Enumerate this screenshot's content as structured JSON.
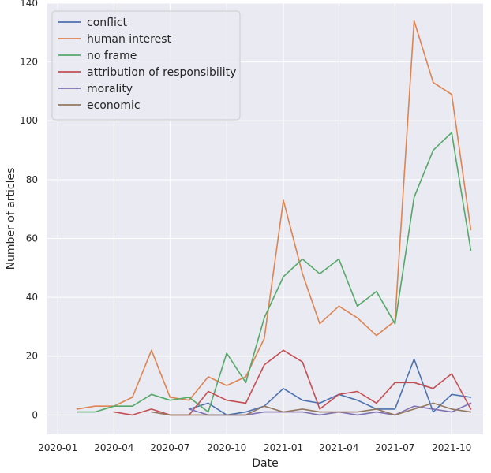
{
  "chart_data": {
    "type": "line",
    "title": "",
    "xlabel": "Date",
    "ylabel": "Number of articles",
    "x_ticks": [
      "2020-01",
      "2020-04",
      "2020-07",
      "2020-10",
      "2021-01",
      "2021-04",
      "2021-07",
      "2021-10"
    ],
    "y_ticks": [
      0,
      20,
      40,
      60,
      80,
      100,
      120,
      140
    ],
    "xlim": [
      "2019-12-15",
      "2021-11-21"
    ],
    "ylim": [
      -6.6,
      140
    ],
    "grid": true,
    "legend_position": "top-left",
    "series": [
      {
        "name": "conflict",
        "color": "#4c72b0",
        "points": [
          [
            "2020-08",
            2
          ],
          [
            "2020-09",
            4
          ],
          [
            "2020-10",
            0
          ],
          [
            "2020-11",
            1
          ],
          [
            "2020-12",
            3
          ],
          [
            "2021-01",
            9
          ],
          [
            "2021-02",
            5
          ],
          [
            "2021-03",
            4
          ],
          [
            "2021-04",
            7
          ],
          [
            "2021-05",
            5
          ],
          [
            "2021-06",
            2
          ],
          [
            "2021-07",
            2
          ],
          [
            "2021-08",
            19
          ],
          [
            "2021-09",
            1
          ],
          [
            "2021-10",
            7
          ],
          [
            "2021-11",
            6
          ]
        ]
      },
      {
        "name": "human interest",
        "color": "#dd8452",
        "points": [
          [
            "2020-02",
            2
          ],
          [
            "2020-03",
            3
          ],
          [
            "2020-04",
            3
          ],
          [
            "2020-05",
            6
          ],
          [
            "2020-06",
            22
          ],
          [
            "2020-07",
            6
          ],
          [
            "2020-08",
            5
          ],
          [
            "2020-09",
            13
          ],
          [
            "2020-10",
            10
          ],
          [
            "2020-11",
            13
          ],
          [
            "2020-12",
            26
          ],
          [
            "2021-01",
            73
          ],
          [
            "2021-02",
            48
          ],
          [
            "2021-03",
            31
          ],
          [
            "2021-04",
            37
          ],
          [
            "2021-05",
            33
          ],
          [
            "2021-06",
            27
          ],
          [
            "2021-07",
            32
          ],
          [
            "2021-08",
            134
          ],
          [
            "2021-09",
            113
          ],
          [
            "2021-10",
            109
          ],
          [
            "2021-11",
            63
          ]
        ]
      },
      {
        "name": "no frame",
        "color": "#55a868",
        "points": [
          [
            "2020-02",
            1
          ],
          [
            "2020-03",
            1
          ],
          [
            "2020-04",
            3
          ],
          [
            "2020-05",
            3
          ],
          [
            "2020-06",
            7
          ],
          [
            "2020-07",
            5
          ],
          [
            "2020-08",
            6
          ],
          [
            "2020-09",
            1
          ],
          [
            "2020-10",
            21
          ],
          [
            "2020-11",
            11
          ],
          [
            "2020-12",
            33
          ],
          [
            "2021-01",
            47
          ],
          [
            "2021-02",
            53
          ],
          [
            "2021-03",
            48
          ],
          [
            "2021-04",
            53
          ],
          [
            "2021-05",
            37
          ],
          [
            "2021-06",
            42
          ],
          [
            "2021-07",
            31
          ],
          [
            "2021-08",
            74
          ],
          [
            "2021-09",
            90
          ],
          [
            "2021-10",
            96
          ],
          [
            "2021-11",
            56
          ]
        ]
      },
      {
        "name": "attribution of responsibility",
        "color": "#c44e52",
        "points": [
          [
            "2020-04",
            1
          ],
          [
            "2020-05",
            0
          ],
          [
            "2020-06",
            2
          ],
          [
            "2020-07",
            0
          ],
          [
            "2020-08",
            0
          ],
          [
            "2020-09",
            8
          ],
          [
            "2020-10",
            5
          ],
          [
            "2020-11",
            4
          ],
          [
            "2020-12",
            17
          ],
          [
            "2021-01",
            22
          ],
          [
            "2021-02",
            18
          ],
          [
            "2021-03",
            2
          ],
          [
            "2021-04",
            7
          ],
          [
            "2021-05",
            8
          ],
          [
            "2021-06",
            4
          ],
          [
            "2021-07",
            11
          ],
          [
            "2021-08",
            11
          ],
          [
            "2021-09",
            9
          ],
          [
            "2021-10",
            14
          ],
          [
            "2021-11",
            2
          ]
        ]
      },
      {
        "name": "morality",
        "color": "#8172b3",
        "points": [
          [
            "2020-08",
            2
          ],
          [
            "2020-09",
            0
          ],
          [
            "2020-10",
            0
          ],
          [
            "2020-11",
            0
          ],
          [
            "2020-12",
            1
          ],
          [
            "2021-01",
            1
          ],
          [
            "2021-02",
            1
          ],
          [
            "2021-03",
            0
          ],
          [
            "2021-04",
            1
          ],
          [
            "2021-05",
            0
          ],
          [
            "2021-06",
            1
          ],
          [
            "2021-07",
            0
          ],
          [
            "2021-08",
            3
          ],
          [
            "2021-09",
            2
          ],
          [
            "2021-10",
            1
          ],
          [
            "2021-11",
            4
          ]
        ]
      },
      {
        "name": "economic",
        "color": "#937860",
        "points": [
          [
            "2020-06",
            1
          ],
          [
            "2020-07",
            0
          ],
          [
            "2020-08",
            0
          ],
          [
            "2020-09",
            0
          ],
          [
            "2020-10",
            0
          ],
          [
            "2020-11",
            0
          ],
          [
            "2020-12",
            3
          ],
          [
            "2021-01",
            1
          ],
          [
            "2021-02",
            2
          ],
          [
            "2021-03",
            1
          ],
          [
            "2021-04",
            1
          ],
          [
            "2021-05",
            1
          ],
          [
            "2021-06",
            2
          ],
          [
            "2021-07",
            0
          ],
          [
            "2021-08",
            2
          ],
          [
            "2021-09",
            4
          ],
          [
            "2021-10",
            2
          ],
          [
            "2021-11",
            1
          ]
        ]
      }
    ]
  }
}
